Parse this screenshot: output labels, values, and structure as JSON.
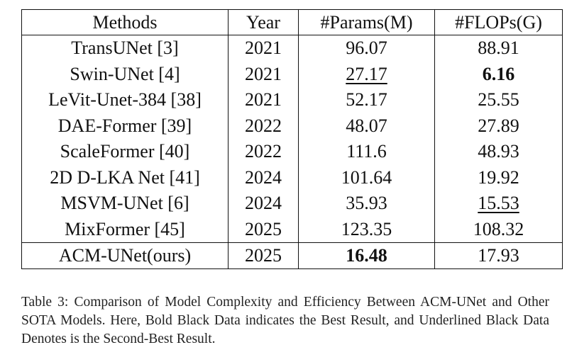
{
  "table": {
    "headers": [
      "Methods",
      "Year",
      "#Params(M)",
      "#FLOPs(G)"
    ],
    "rows": [
      {
        "method": "TransUNet [3]",
        "year": "2021",
        "params": "96.07",
        "flops": "88.91"
      },
      {
        "method": "Swin-UNet [4]",
        "year": "2021",
        "params": "27.17",
        "flops": "6.16"
      },
      {
        "method": "LeVit-Unet-384 [38]",
        "year": "2021",
        "params": "52.17",
        "flops": "25.55"
      },
      {
        "method": "DAE-Former [39]",
        "year": "2022",
        "params": "48.07",
        "flops": "27.89"
      },
      {
        "method": "ScaleFormer [40]",
        "year": "2022",
        "params": "111.6",
        "flops": "48.93"
      },
      {
        "method": "2D D-LKA Net [41]",
        "year": "2024",
        "params": "101.64",
        "flops": "19.92"
      },
      {
        "method": "MSVM-UNet [6]",
        "year": "2024",
        "params": "35.93",
        "flops": "15.53"
      },
      {
        "method": "MixFormer [45]",
        "year": "2025",
        "params": "123.35",
        "flops": "108.32"
      }
    ],
    "ours": {
      "method": "ACM-UNet(ours)",
      "year": "2025",
      "params": "16.48",
      "flops": "17.93"
    }
  },
  "caption": "Table 3: Comparison of Model Complexity and Efficiency Between ACM-UNet and Other SOTA Models. Here, Bold Black Data indicates the Best Result, and Underlined Black Data Denotes is the Second-Best Result."
}
